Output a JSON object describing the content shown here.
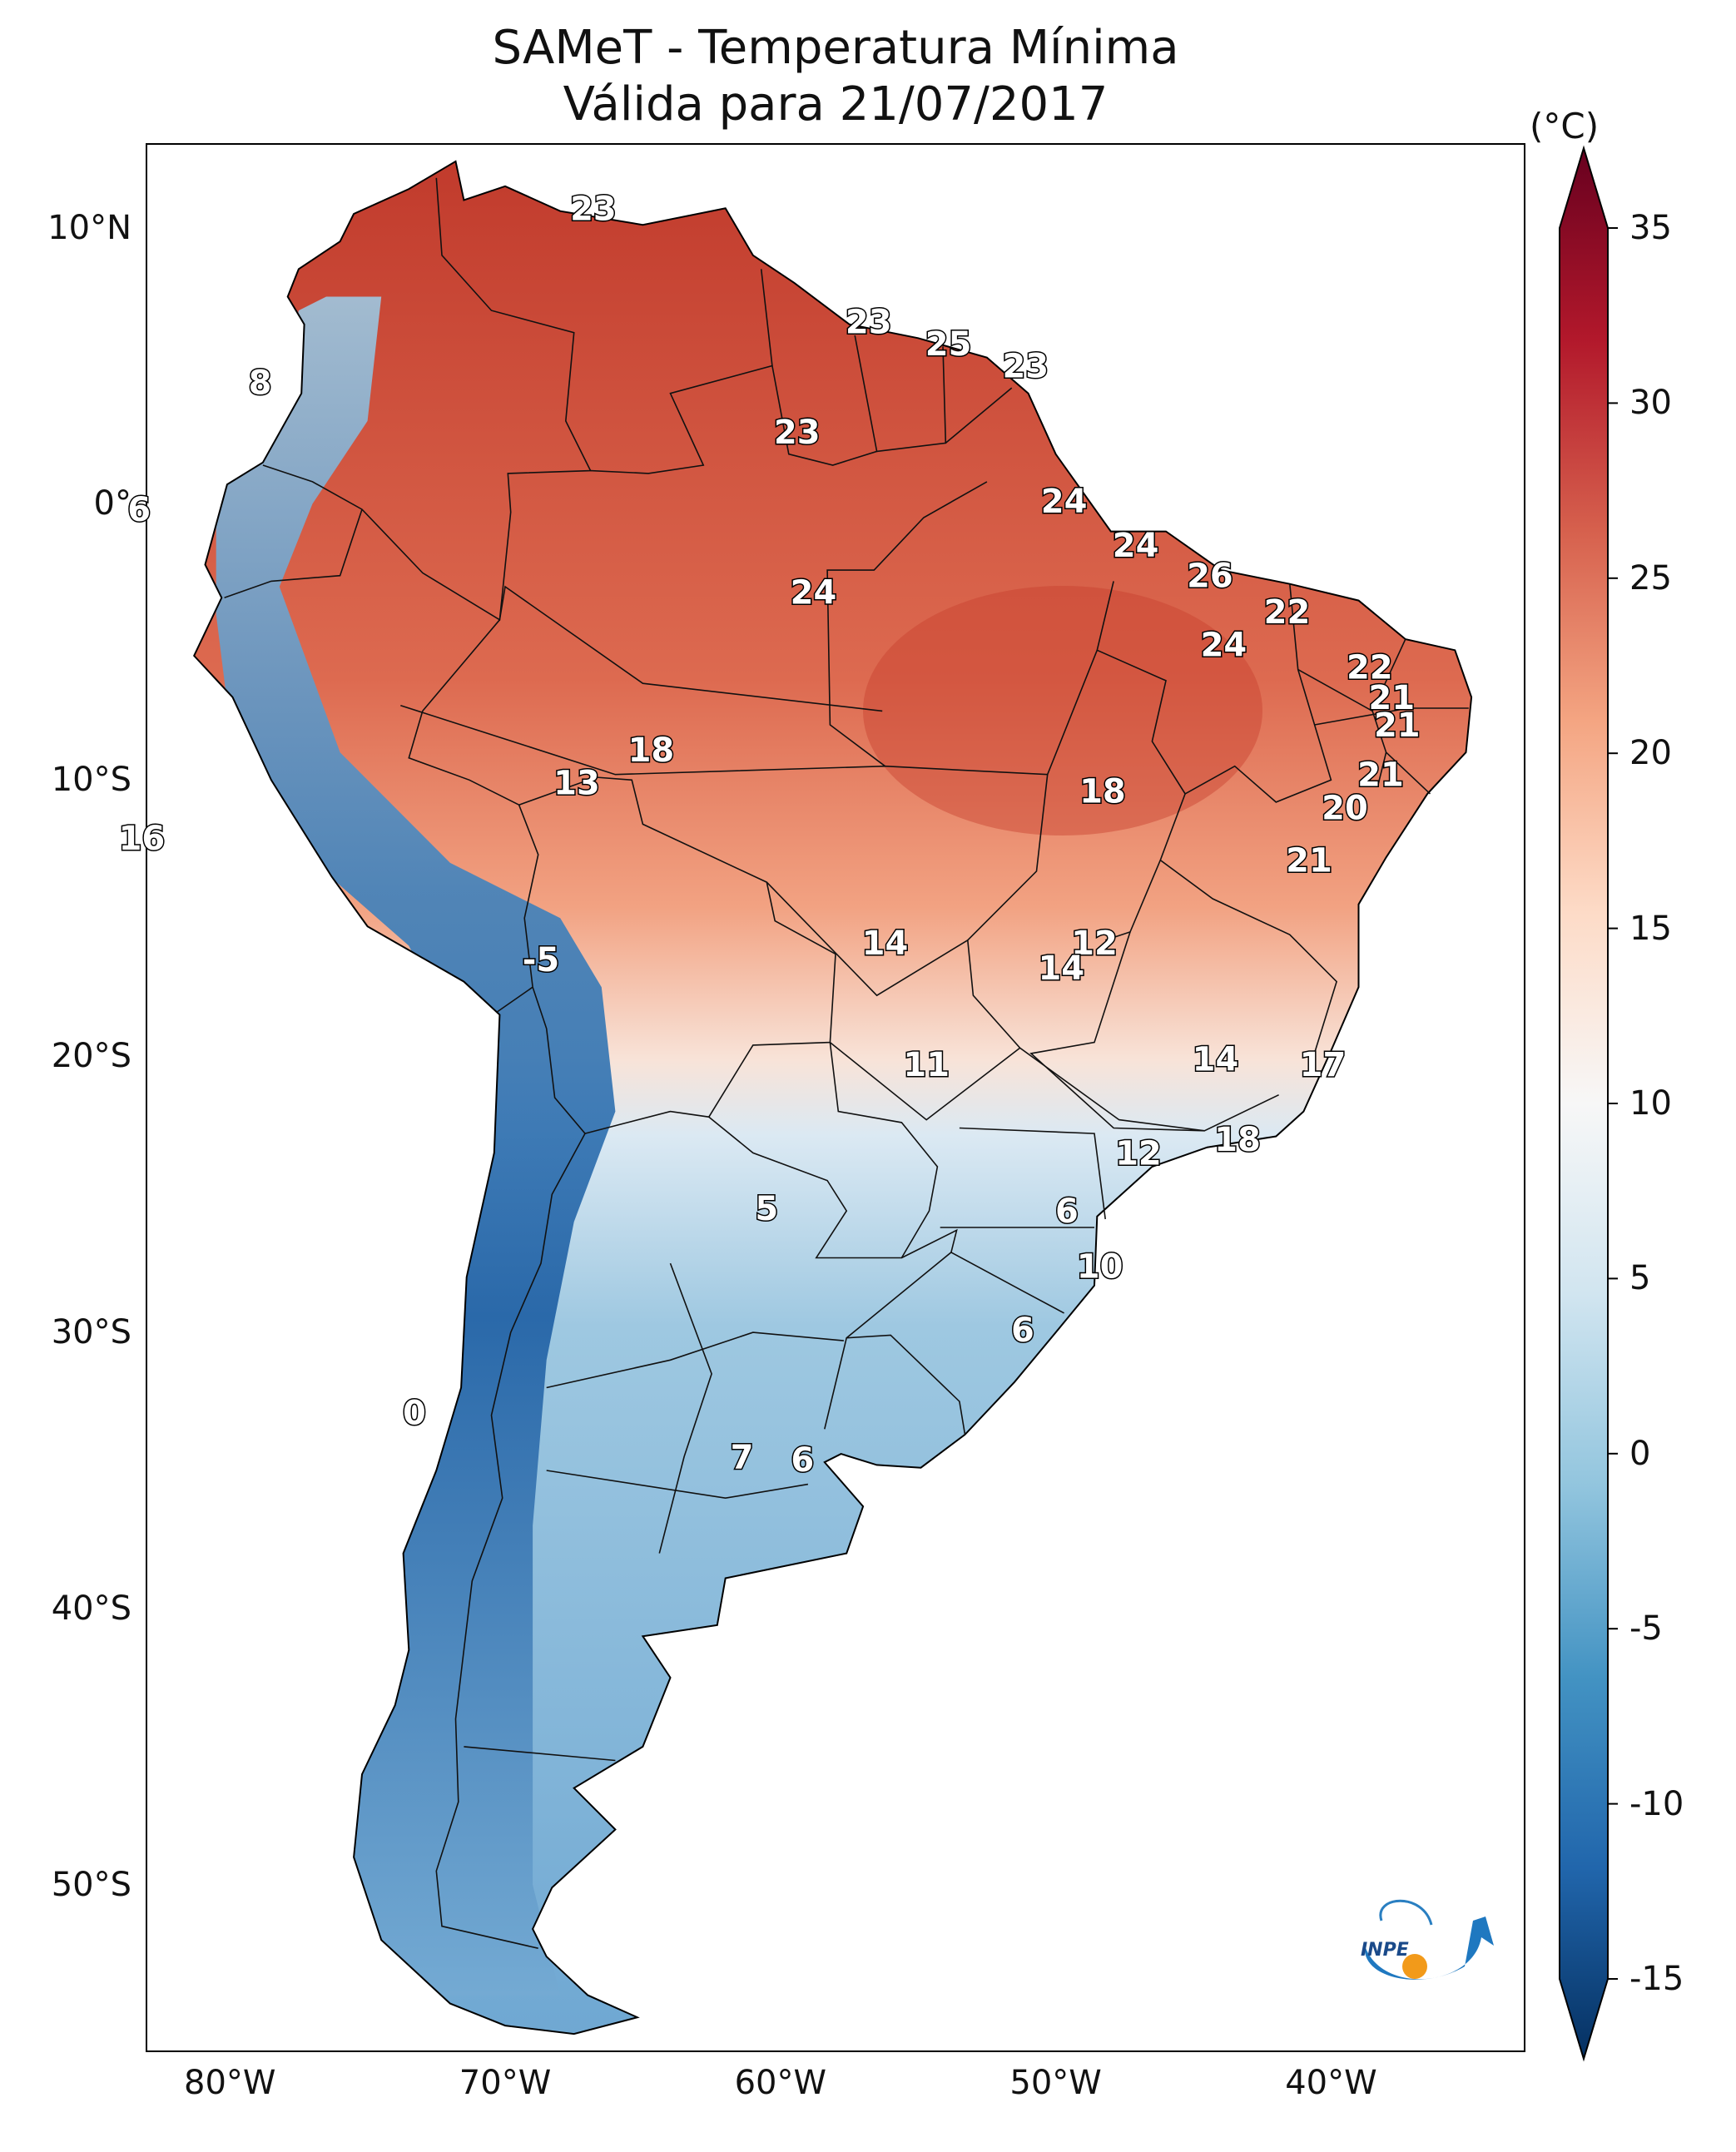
{
  "title": {
    "line1": "SAMeT - Temperatura Mínima",
    "line2": "Válida para 21/07/2017"
  },
  "map": {
    "extent": {
      "lon_min": -83,
      "lon_max": -33,
      "lat_min": -56,
      "lat_max": 13
    },
    "lat_ticks": [
      {
        "lat": 10,
        "label": "10°N"
      },
      {
        "lat": 0,
        "label": "0°"
      },
      {
        "lat": -10,
        "label": "10°S"
      },
      {
        "lat": -20,
        "label": "20°S"
      },
      {
        "lat": -30,
        "label": "30°S"
      },
      {
        "lat": -40,
        "label": "40°S"
      },
      {
        "lat": -50,
        "label": "50°S"
      }
    ],
    "lon_ticks": [
      {
        "lon": -80,
        "label": "80°W"
      },
      {
        "lon": -70,
        "label": "70°W"
      },
      {
        "lon": -60,
        "label": "60°W"
      },
      {
        "lon": -50,
        "label": "50°W"
      },
      {
        "lon": -40,
        "label": "40°W"
      }
    ],
    "temperature_labels": [
      {
        "lon": -66.8,
        "lat": 10.7,
        "label": "23"
      },
      {
        "lon": -78.9,
        "lat": 4.4,
        "label": "8"
      },
      {
        "lon": -56.8,
        "lat": 6.6,
        "label": "23"
      },
      {
        "lon": -53.9,
        "lat": 5.8,
        "label": "25"
      },
      {
        "lon": -51.1,
        "lat": 5.0,
        "label": "23"
      },
      {
        "lon": -83.3,
        "lat": -0.2,
        "label": "6"
      },
      {
        "lon": -59.4,
        "lat": 2.6,
        "label": "23"
      },
      {
        "lon": -49.7,
        "lat": 0.1,
        "label": "24"
      },
      {
        "lon": -47.1,
        "lat": -1.5,
        "label": "24"
      },
      {
        "lon": -44.4,
        "lat": -2.6,
        "label": "26"
      },
      {
        "lon": -58.8,
        "lat": -3.2,
        "label": "24"
      },
      {
        "lon": -41.6,
        "lat": -3.9,
        "label": "22"
      },
      {
        "lon": -43.9,
        "lat": -5.1,
        "label": "24"
      },
      {
        "lon": -38.6,
        "lat": -5.9,
        "label": "22"
      },
      {
        "lon": -37.8,
        "lat": -7.0,
        "label": "21"
      },
      {
        "lon": -37.6,
        "lat": -8.0,
        "label": "21"
      },
      {
        "lon": -38.2,
        "lat": -9.8,
        "label": "21"
      },
      {
        "lon": -39.5,
        "lat": -11.0,
        "label": "20"
      },
      {
        "lon": -40.8,
        "lat": -12.9,
        "label": "21"
      },
      {
        "lon": -64.7,
        "lat": -8.9,
        "label": "18"
      },
      {
        "lon": -67.4,
        "lat": -10.1,
        "label": "13"
      },
      {
        "lon": -48.3,
        "lat": -10.4,
        "label": "18"
      },
      {
        "lon": -83.2,
        "lat": -12.1,
        "label": "16"
      },
      {
        "lon": -56.2,
        "lat": -15.9,
        "label": "14"
      },
      {
        "lon": -48.6,
        "lat": -15.9,
        "label": "12"
      },
      {
        "lon": -49.8,
        "lat": -16.8,
        "label": "14"
      },
      {
        "lon": -68.7,
        "lat": -16.5,
        "label": "-5"
      },
      {
        "lon": -54.7,
        "lat": -20.3,
        "label": "11"
      },
      {
        "lon": -44.2,
        "lat": -20.1,
        "label": "14"
      },
      {
        "lon": -40.3,
        "lat": -20.3,
        "label": "17"
      },
      {
        "lon": -47.0,
        "lat": -23.5,
        "label": "12"
      },
      {
        "lon": -43.4,
        "lat": -23.0,
        "label": "18"
      },
      {
        "lon": -60.5,
        "lat": -25.5,
        "label": "5"
      },
      {
        "lon": -49.6,
        "lat": -25.6,
        "label": "6"
      },
      {
        "lon": -48.4,
        "lat": -27.6,
        "label": "10"
      },
      {
        "lon": -51.2,
        "lat": -29.9,
        "label": "6"
      },
      {
        "lon": -73.3,
        "lat": -32.9,
        "label": "0"
      },
      {
        "lon": -61.4,
        "lat": -34.5,
        "label": "7"
      },
      {
        "lon": -59.2,
        "lat": -34.6,
        "label": "6"
      }
    ]
  },
  "colorbar": {
    "unit": "(°C)",
    "vmin": -15,
    "vmax": 35,
    "ticks": [
      {
        "value": 35,
        "label": "35"
      },
      {
        "value": 30,
        "label": "30"
      },
      {
        "value": 25,
        "label": "25"
      },
      {
        "value": 20,
        "label": "20"
      },
      {
        "value": 15,
        "label": "15"
      },
      {
        "value": 10,
        "label": "10"
      },
      {
        "value": 5,
        "label": "5"
      },
      {
        "value": 0,
        "label": "0"
      },
      {
        "value": -5,
        "label": "-5"
      },
      {
        "value": -10,
        "label": "-10"
      },
      {
        "value": -15,
        "label": "-15"
      }
    ],
    "colormap": [
      "#053061",
      "#2166ac",
      "#4393c3",
      "#92c5de",
      "#d1e5f0",
      "#f7f7f7",
      "#fddbc7",
      "#f4a582",
      "#d6604d",
      "#b2182b",
      "#67001f"
    ]
  },
  "logo": {
    "text": "INPE"
  }
}
